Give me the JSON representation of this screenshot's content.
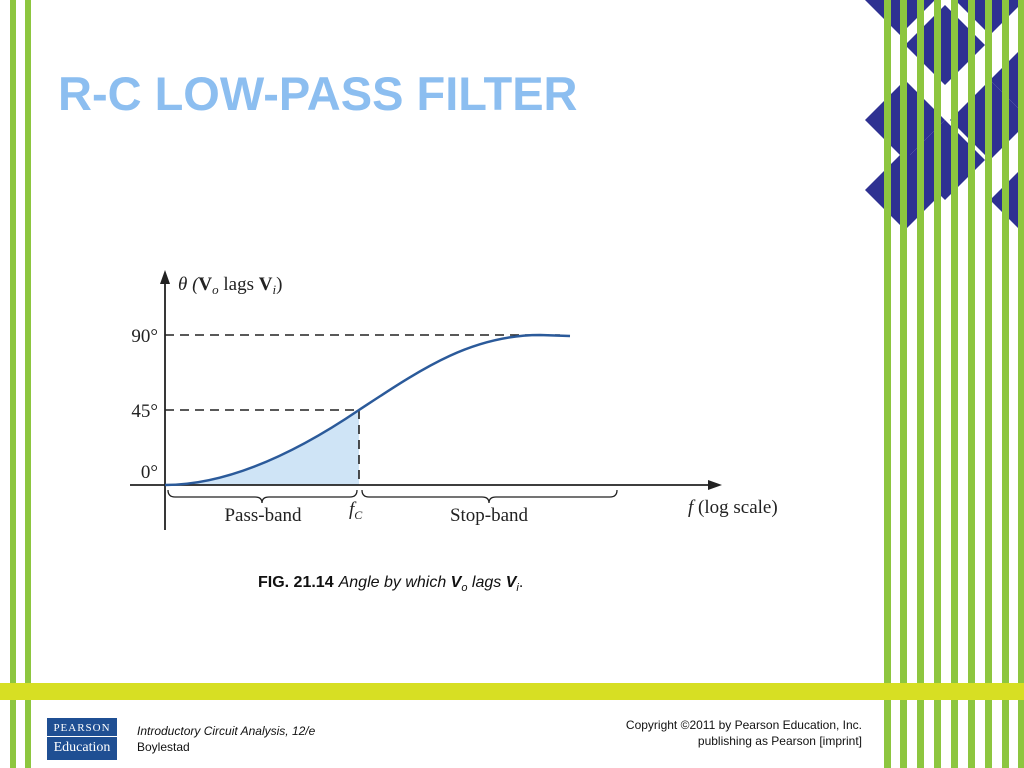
{
  "header": {
    "title": "R-C LOW-PASS FILTER"
  },
  "figure": {
    "y_axis_label": [
      "θ (",
      "V",
      "o",
      " lags ",
      "V",
      "i",
      ")"
    ],
    "y_labels": [
      "90°",
      "45°",
      "0°"
    ],
    "x_axis_label": [
      "f",
      " (log scale)"
    ],
    "fc_label": [
      "f",
      "C"
    ],
    "regions": [
      "Pass-band",
      "Stop-band"
    ]
  },
  "caption": {
    "number": "FIG. 21.14",
    "text": [
      "Angle by which ",
      "V",
      "o",
      " lags ",
      "V",
      "i",
      "."
    ]
  },
  "footer": {
    "logo": [
      "PEARSON",
      "Education"
    ],
    "book": "Introductory Circuit Analysis, 12/e",
    "author": "Boylestad",
    "copyright": [
      "Copyright ©2011 by Pearson Education, Inc.",
      "publishing as Pearson [imprint]"
    ]
  }
}
